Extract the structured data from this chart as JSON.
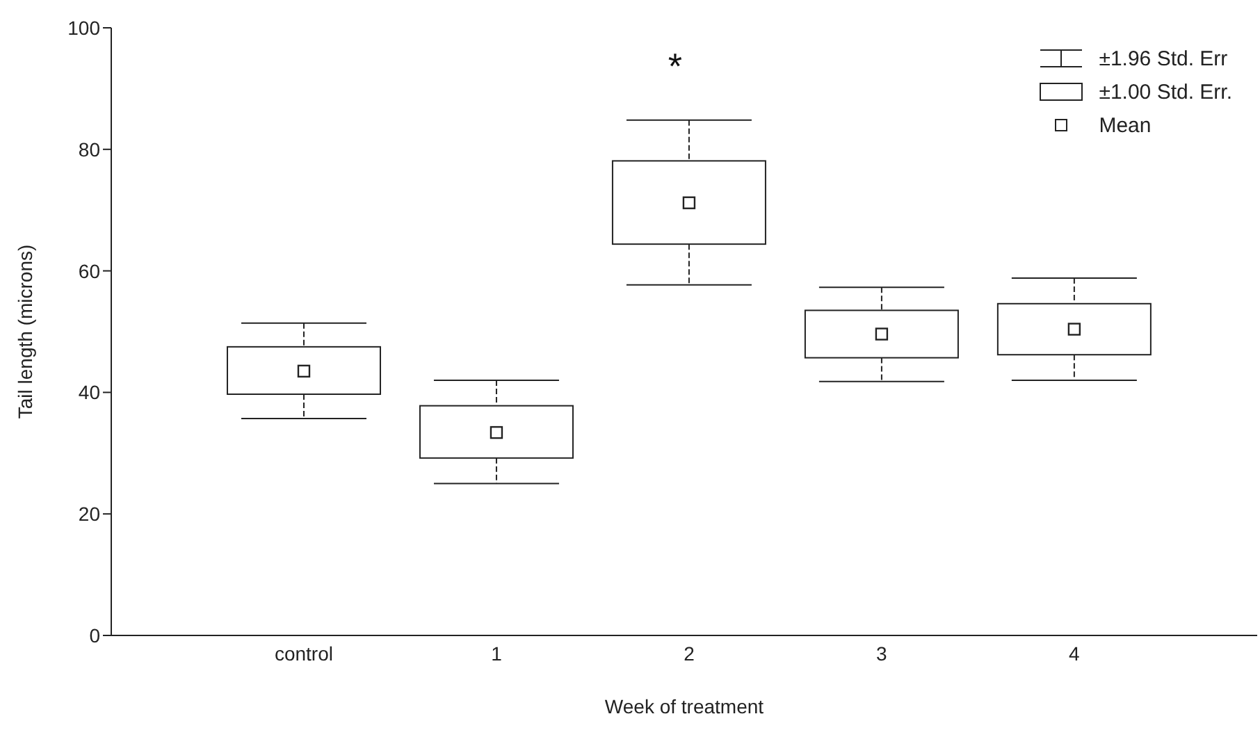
{
  "chart_data": {
    "type": "box",
    "xlabel": "Week of treatment",
    "ylabel": "Tail length (microns)",
    "categories": [
      "control",
      "1",
      "2",
      "3",
      "4"
    ],
    "boxes": [
      {
        "low": 35.7,
        "q1": 39.7,
        "q3": 47.5,
        "high": 51.4,
        "mean": 43.5
      },
      {
        "low": 25,
        "q1": 29.2,
        "q3": 37.8,
        "high": 42,
        "mean": 33.4
      },
      {
        "low": 57.7,
        "q1": 64.4,
        "q3": 78.1,
        "high": 84.8,
        "mean": 71.2
      },
      {
        "low": 41.8,
        "q1": 45.7,
        "q3": 53.5,
        "high": 57.3,
        "mean": 49.6
      },
      {
        "low": 42,
        "q1": 46.2,
        "q3": 54.6,
        "high": 58.8,
        "mean": 50.4
      }
    ],
    "color": "#222222",
    "ylim": [
      0,
      100
    ],
    "yticks": [
      0,
      20,
      40,
      60,
      80,
      100
    ],
    "annotations": [
      "*",
      "±1.96 Std. Err",
      "±1.00 Std. Err.",
      "Mean"
    ]
  }
}
